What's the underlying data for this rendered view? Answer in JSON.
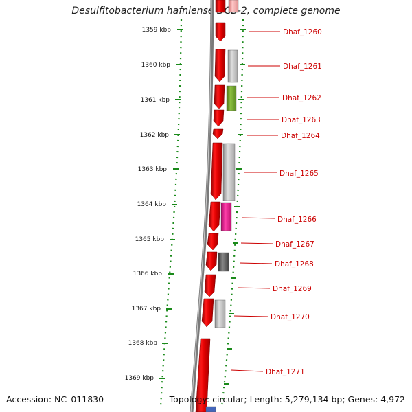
{
  "title": "Desulfitobacterium hafniense DCB-2, complete genome",
  "footer": {
    "accession": "Accession: NC_011830",
    "summary": "Topology: circular; Length: 5,279,134 bp; Genes: 4,972"
  },
  "scale": {
    "unit": "kbp",
    "ticks": [
      "1359 kbp",
      "1360 kbp",
      "1361 kbp",
      "1362 kbp",
      "1363 kbp",
      "1364 kbp",
      "1365 kbp",
      "1366 kbp",
      "1367 kbp",
      "1368 kbp",
      "1369 kbp"
    ]
  },
  "genes": [
    {
      "label": "Dhaf_1260",
      "color": "#cc0000"
    },
    {
      "label": "Dhaf_1261",
      "color": "#cc0000"
    },
    {
      "label": "Dhaf_1262",
      "color": "#cc0000"
    },
    {
      "label": "Dhaf_1263",
      "color": "#cc0000"
    },
    {
      "label": "Dhaf_1264",
      "color": "#cc0000"
    },
    {
      "label": "Dhaf_1265",
      "color": "#cc0000"
    },
    {
      "label": "Dhaf_1266",
      "color": "#cc0000"
    },
    {
      "label": "Dhaf_1267",
      "color": "#cc0000"
    },
    {
      "label": "Dhaf_1268",
      "color": "#cc0000"
    },
    {
      "label": "Dhaf_1269",
      "color": "#cc0000"
    },
    {
      "label": "Dhaf_1270",
      "color": "#cc0000"
    },
    {
      "label": "Dhaf_1271",
      "color": "#cc0000"
    }
  ],
  "colors": {
    "cds": "#e00000",
    "tick": "#1a8a1a",
    "backbone": "#777777",
    "cog_light_gray": "#c4c4c4",
    "cog_olive": "#6b9a2a",
    "cog_magenta": "#e0208c",
    "cog_dark_gray": "#5a5a5a",
    "cog_pink": "#f4a0a0",
    "cog_blue": "#4466bb"
  }
}
